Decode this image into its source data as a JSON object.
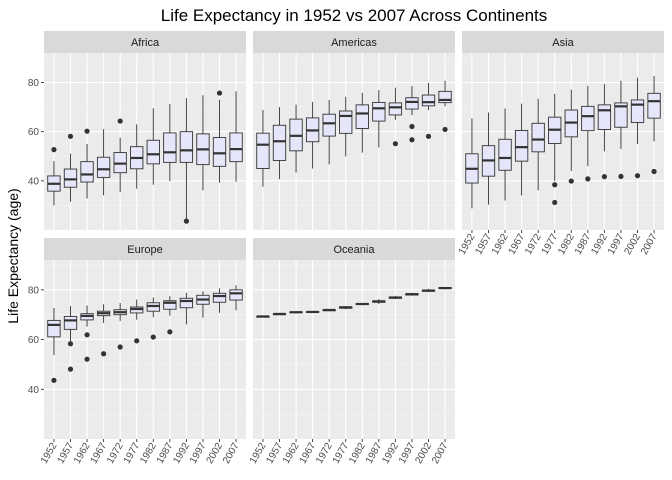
{
  "colors": {
    "panel_bg": "#EBEBEB",
    "grid_major": "#FFFFFF",
    "grid_minor": "#F5F5F5",
    "strip_bg": "#D9D9D9",
    "box_fill": "#E6E6FA",
    "box_line": "#333333",
    "tick": "#333333"
  },
  "chart_data": {
    "type": "boxplot",
    "title": "Life Expectancy in 1952 vs 2007 Across Continents",
    "xlabel": "",
    "ylabel": "Life Expectancy (age)",
    "ylim": [
      20,
      92
    ],
    "yticks": [
      40,
      60,
      80
    ],
    "facets_layout": "3 columns x 2 rows",
    "categories": [
      "1952",
      "1957",
      "1962",
      "1967",
      "1972",
      "1977",
      "1982",
      "1987",
      "1992",
      "1997",
      "2002",
      "2007"
    ],
    "panels": [
      {
        "name": "Africa",
        "boxes": [
          {
            "year": "1952",
            "min": 30.0,
            "q1": 35.8,
            "median": 38.8,
            "q3": 42.0,
            "max": 48.0,
            "outliers": [
              52.7
            ]
          },
          {
            "year": "1957",
            "min": 31.5,
            "q1": 37.4,
            "median": 40.6,
            "q3": 44.8,
            "max": 51.0,
            "outliers": [
              58.1
            ]
          },
          {
            "year": "1962",
            "min": 32.8,
            "q1": 39.5,
            "median": 42.6,
            "q3": 47.8,
            "max": 55.0,
            "outliers": [
              60.2
            ]
          },
          {
            "year": "1967",
            "min": 34.1,
            "q1": 41.4,
            "median": 44.7,
            "q3": 49.6,
            "max": 61.0,
            "outliers": []
          },
          {
            "year": "1972",
            "min": 35.4,
            "q1": 43.3,
            "median": 47.0,
            "q3": 51.5,
            "max": 57.5,
            "outliers": [
              64.3
            ]
          },
          {
            "year": "1977",
            "min": 36.8,
            "q1": 44.9,
            "median": 49.3,
            "q3": 53.9,
            "max": 63.0,
            "outliers": []
          },
          {
            "year": "1982",
            "min": 38.4,
            "q1": 46.9,
            "median": 50.8,
            "q3": 56.5,
            "max": 69.5,
            "outliers": []
          },
          {
            "year": "1987",
            "min": 39.9,
            "q1": 47.5,
            "median": 51.6,
            "q3": 59.5,
            "max": 71.3,
            "outliers": []
          },
          {
            "year": "1992",
            "min": 23.6,
            "q1": 47.5,
            "median": 52.4,
            "q3": 60.0,
            "max": 73.6,
            "outliers": [
              23.6
            ]
          },
          {
            "year": "1997",
            "min": 36.1,
            "q1": 46.6,
            "median": 52.8,
            "q3": 59.1,
            "max": 74.8,
            "outliers": []
          },
          {
            "year": "2002",
            "min": 39.2,
            "q1": 45.9,
            "median": 51.2,
            "q3": 57.6,
            "max": 73.0,
            "outliers": [
              75.7
            ]
          },
          {
            "year": "2007",
            "min": 39.6,
            "q1": 47.8,
            "median": 52.9,
            "q3": 59.5,
            "max": 76.4,
            "outliers": []
          }
        ]
      },
      {
        "name": "Americas",
        "boxes": [
          {
            "year": "1952",
            "min": 37.6,
            "q1": 45.0,
            "median": 54.7,
            "q3": 59.4,
            "max": 68.8,
            "outliers": []
          },
          {
            "year": "1957",
            "min": 40.7,
            "q1": 48.3,
            "median": 56.1,
            "q3": 62.6,
            "max": 70.0,
            "outliers": []
          },
          {
            "year": "1962",
            "min": 43.4,
            "q1": 52.2,
            "median": 58.3,
            "q3": 65.1,
            "max": 71.0,
            "outliers": []
          },
          {
            "year": "1967",
            "min": 45.0,
            "q1": 55.9,
            "median": 60.5,
            "q3": 65.6,
            "max": 72.1,
            "outliers": []
          },
          {
            "year": "1972",
            "min": 46.7,
            "q1": 58.2,
            "median": 63.4,
            "q3": 67.1,
            "max": 72.9,
            "outliers": []
          },
          {
            "year": "1977",
            "min": 49.9,
            "q1": 59.3,
            "median": 66.4,
            "q3": 68.4,
            "max": 74.2,
            "outliers": []
          },
          {
            "year": "1982",
            "min": 51.5,
            "q1": 61.3,
            "median": 67.4,
            "q3": 70.9,
            "max": 75.8,
            "outliers": []
          },
          {
            "year": "1987",
            "min": 53.6,
            "q1": 64.3,
            "median": 69.5,
            "q3": 71.9,
            "max": 76.9,
            "outliers": []
          },
          {
            "year": "1992",
            "min": 64.8,
            "q1": 66.8,
            "median": 69.9,
            "q3": 71.7,
            "max": 77.9,
            "outliers": [
              55.1
            ]
          },
          {
            "year": "1997",
            "min": 66.7,
            "q1": 69.2,
            "median": 72.1,
            "q3": 73.8,
            "max": 78.6,
            "outliers": [
              56.7,
              62.1
            ]
          },
          {
            "year": "2002",
            "min": 68.8,
            "q1": 70.5,
            "median": 72.0,
            "q3": 74.9,
            "max": 79.8,
            "outliers": [
              58.1
            ]
          },
          {
            "year": "2007",
            "min": 70.3,
            "q1": 71.8,
            "median": 72.9,
            "q3": 76.4,
            "max": 80.7,
            "outliers": [
              60.9
            ]
          }
        ]
      },
      {
        "name": "Asia",
        "boxes": [
          {
            "year": "1952",
            "min": 28.8,
            "q1": 39.1,
            "median": 44.9,
            "q3": 51.0,
            "max": 65.4,
            "outliers": []
          },
          {
            "year": "1957",
            "min": 30.3,
            "q1": 41.9,
            "median": 48.3,
            "q3": 54.3,
            "max": 67.8,
            "outliers": []
          },
          {
            "year": "1962",
            "min": 32.0,
            "q1": 44.3,
            "median": 49.3,
            "q3": 56.9,
            "max": 69.4,
            "outliers": []
          },
          {
            "year": "1967",
            "min": 34.0,
            "q1": 48.0,
            "median": 53.7,
            "q3": 60.5,
            "max": 71.4,
            "outliers": []
          },
          {
            "year": "1972",
            "min": 36.1,
            "q1": 51.8,
            "median": 56.8,
            "q3": 63.4,
            "max": 73.4,
            "outliers": []
          },
          {
            "year": "1977",
            "min": 40.0,
            "q1": 55.2,
            "median": 60.8,
            "q3": 65.9,
            "max": 75.4,
            "outliers": [
              38.4,
              31.2
            ]
          },
          {
            "year": "1982",
            "min": 44.0,
            "q1": 57.9,
            "median": 63.7,
            "q3": 68.8,
            "max": 77.1,
            "outliers": [
              39.9
            ]
          },
          {
            "year": "1987",
            "min": 46.0,
            "q1": 60.4,
            "median": 66.3,
            "q3": 70.3,
            "max": 78.7,
            "outliers": [
              40.8
            ]
          },
          {
            "year": "1992",
            "min": 52.0,
            "q1": 60.9,
            "median": 68.7,
            "q3": 70.9,
            "max": 79.4,
            "outliers": [
              41.7
            ]
          },
          {
            "year": "1997",
            "min": 53.0,
            "q1": 61.8,
            "median": 70.3,
            "q3": 71.7,
            "max": 80.7,
            "outliers": [
              41.8
            ]
          },
          {
            "year": "2002",
            "min": 55.0,
            "q1": 63.7,
            "median": 71.0,
            "q3": 72.9,
            "max": 82.0,
            "outliers": [
              42.1
            ]
          },
          {
            "year": "2007",
            "min": 56.0,
            "q1": 65.5,
            "median": 72.4,
            "q3": 75.6,
            "max": 82.6,
            "outliers": [
              43.8
            ]
          }
        ]
      },
      {
        "name": "Europe",
        "boxes": [
          {
            "year": "1952",
            "min": 53.8,
            "q1": 61.1,
            "median": 65.9,
            "q3": 67.7,
            "max": 72.7,
            "outliers": [
              43.6
            ]
          },
          {
            "year": "1957",
            "min": 59.3,
            "q1": 64.1,
            "median": 67.7,
            "q3": 69.3,
            "max": 73.5,
            "outliers": [
              58.3,
              48.1
            ]
          },
          {
            "year": "1962",
            "min": 65.2,
            "q1": 67.9,
            "median": 69.5,
            "q3": 70.4,
            "max": 73.7,
            "outliers": [
              61.9,
              52.1
            ]
          },
          {
            "year": "1967",
            "min": 66.7,
            "q1": 69.6,
            "median": 70.6,
            "q3": 71.4,
            "max": 74.2,
            "outliers": [
              54.3
            ]
          },
          {
            "year": "1972",
            "min": 67.5,
            "q1": 70.0,
            "median": 71.0,
            "q3": 72.0,
            "max": 74.7,
            "outliers": [
              57.0
            ]
          },
          {
            "year": "1977",
            "min": 68.0,
            "q1": 70.7,
            "median": 72.3,
            "q3": 73.1,
            "max": 76.1,
            "outliers": [
              59.5
            ]
          },
          {
            "year": "1982",
            "min": 69.0,
            "q1": 71.4,
            "median": 73.5,
            "q3": 74.8,
            "max": 76.9,
            "outliers": [
              61.0
            ]
          },
          {
            "year": "1987",
            "min": 69.6,
            "q1": 72.2,
            "median": 74.8,
            "q3": 75.6,
            "max": 77.4,
            "outliers": [
              63.1
            ]
          },
          {
            "year": "1992",
            "min": 66.1,
            "q1": 72.8,
            "median": 75.5,
            "q3": 76.6,
            "max": 78.8,
            "outliers": []
          },
          {
            "year": "1997",
            "min": 68.8,
            "q1": 74.2,
            "median": 76.1,
            "q3": 77.8,
            "max": 79.4,
            "outliers": []
          },
          {
            "year": "2002",
            "min": 70.8,
            "q1": 75.0,
            "median": 77.5,
            "q3": 78.6,
            "max": 80.6,
            "outliers": []
          },
          {
            "year": "2007",
            "min": 71.8,
            "q1": 75.9,
            "median": 78.6,
            "q3": 80.0,
            "max": 81.8,
            "outliers": []
          }
        ]
      },
      {
        "name": "Oceania",
        "boxes": [
          {
            "year": "1952",
            "min": 69.1,
            "q1": 69.2,
            "median": 69.3,
            "q3": 69.3,
            "max": 69.4,
            "outliers": []
          },
          {
            "year": "1957",
            "min": 70.3,
            "q1": 70.3,
            "median": 70.3,
            "q3": 70.3,
            "max": 70.3,
            "outliers": []
          },
          {
            "year": "1962",
            "min": 70.9,
            "q1": 71.0,
            "median": 71.0,
            "q3": 71.1,
            "max": 71.2,
            "outliers": []
          },
          {
            "year": "1967",
            "min": 71.1,
            "q1": 71.1,
            "median": 71.1,
            "q3": 71.2,
            "max": 71.5,
            "outliers": []
          },
          {
            "year": "1972",
            "min": 71.9,
            "q1": 71.9,
            "median": 71.9,
            "q3": 71.9,
            "max": 71.9,
            "outliers": []
          },
          {
            "year": "1977",
            "min": 72.2,
            "q1": 72.6,
            "median": 72.9,
            "q3": 73.2,
            "max": 73.5,
            "outliers": []
          },
          {
            "year": "1982",
            "min": 73.8,
            "q1": 74.1,
            "median": 74.3,
            "q3": 74.5,
            "max": 74.7,
            "outliers": []
          },
          {
            "year": "1987",
            "min": 74.3,
            "q1": 75.0,
            "median": 75.3,
            "q3": 75.6,
            "max": 76.3,
            "outliers": []
          },
          {
            "year": "1992",
            "min": 76.3,
            "q1": 76.6,
            "median": 76.9,
            "q3": 77.1,
            "max": 77.6,
            "outliers": []
          },
          {
            "year": "1997",
            "min": 77.6,
            "q1": 77.9,
            "median": 78.2,
            "q3": 78.5,
            "max": 78.8,
            "outliers": []
          },
          {
            "year": "2002",
            "min": 79.1,
            "q1": 79.4,
            "median": 79.7,
            "q3": 79.9,
            "max": 80.4,
            "outliers": []
          },
          {
            "year": "2007",
            "min": 80.2,
            "q1": 80.5,
            "median": 80.7,
            "q3": 80.9,
            "max": 81.2,
            "outliers": []
          }
        ]
      }
    ]
  }
}
